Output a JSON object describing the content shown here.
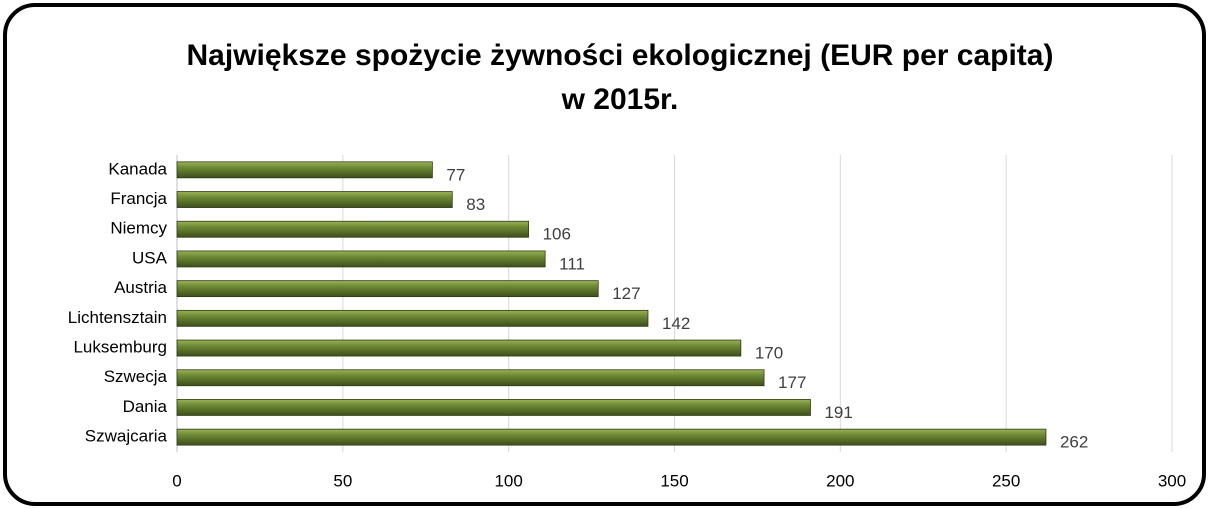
{
  "chart_data": {
    "type": "barh",
    "title": [
      "Największe spożycie żywności ekologicznej (EUR per capita)",
      "w 2015r."
    ],
    "categories": [
      "Kanada",
      "Francja",
      "Niemcy",
      "USA",
      "Austria",
      "Lichtensztain",
      "Luksemburg",
      "Szwecja",
      "Dania",
      "Szwajcaria"
    ],
    "values": [
      77,
      83,
      106,
      111,
      127,
      142,
      170,
      177,
      191,
      262
    ],
    "color": "#5a7030",
    "xlim": [
      0,
      300
    ],
    "xticks": [
      0,
      50,
      100,
      150,
      200,
      250,
      300
    ],
    "grid": true
  }
}
